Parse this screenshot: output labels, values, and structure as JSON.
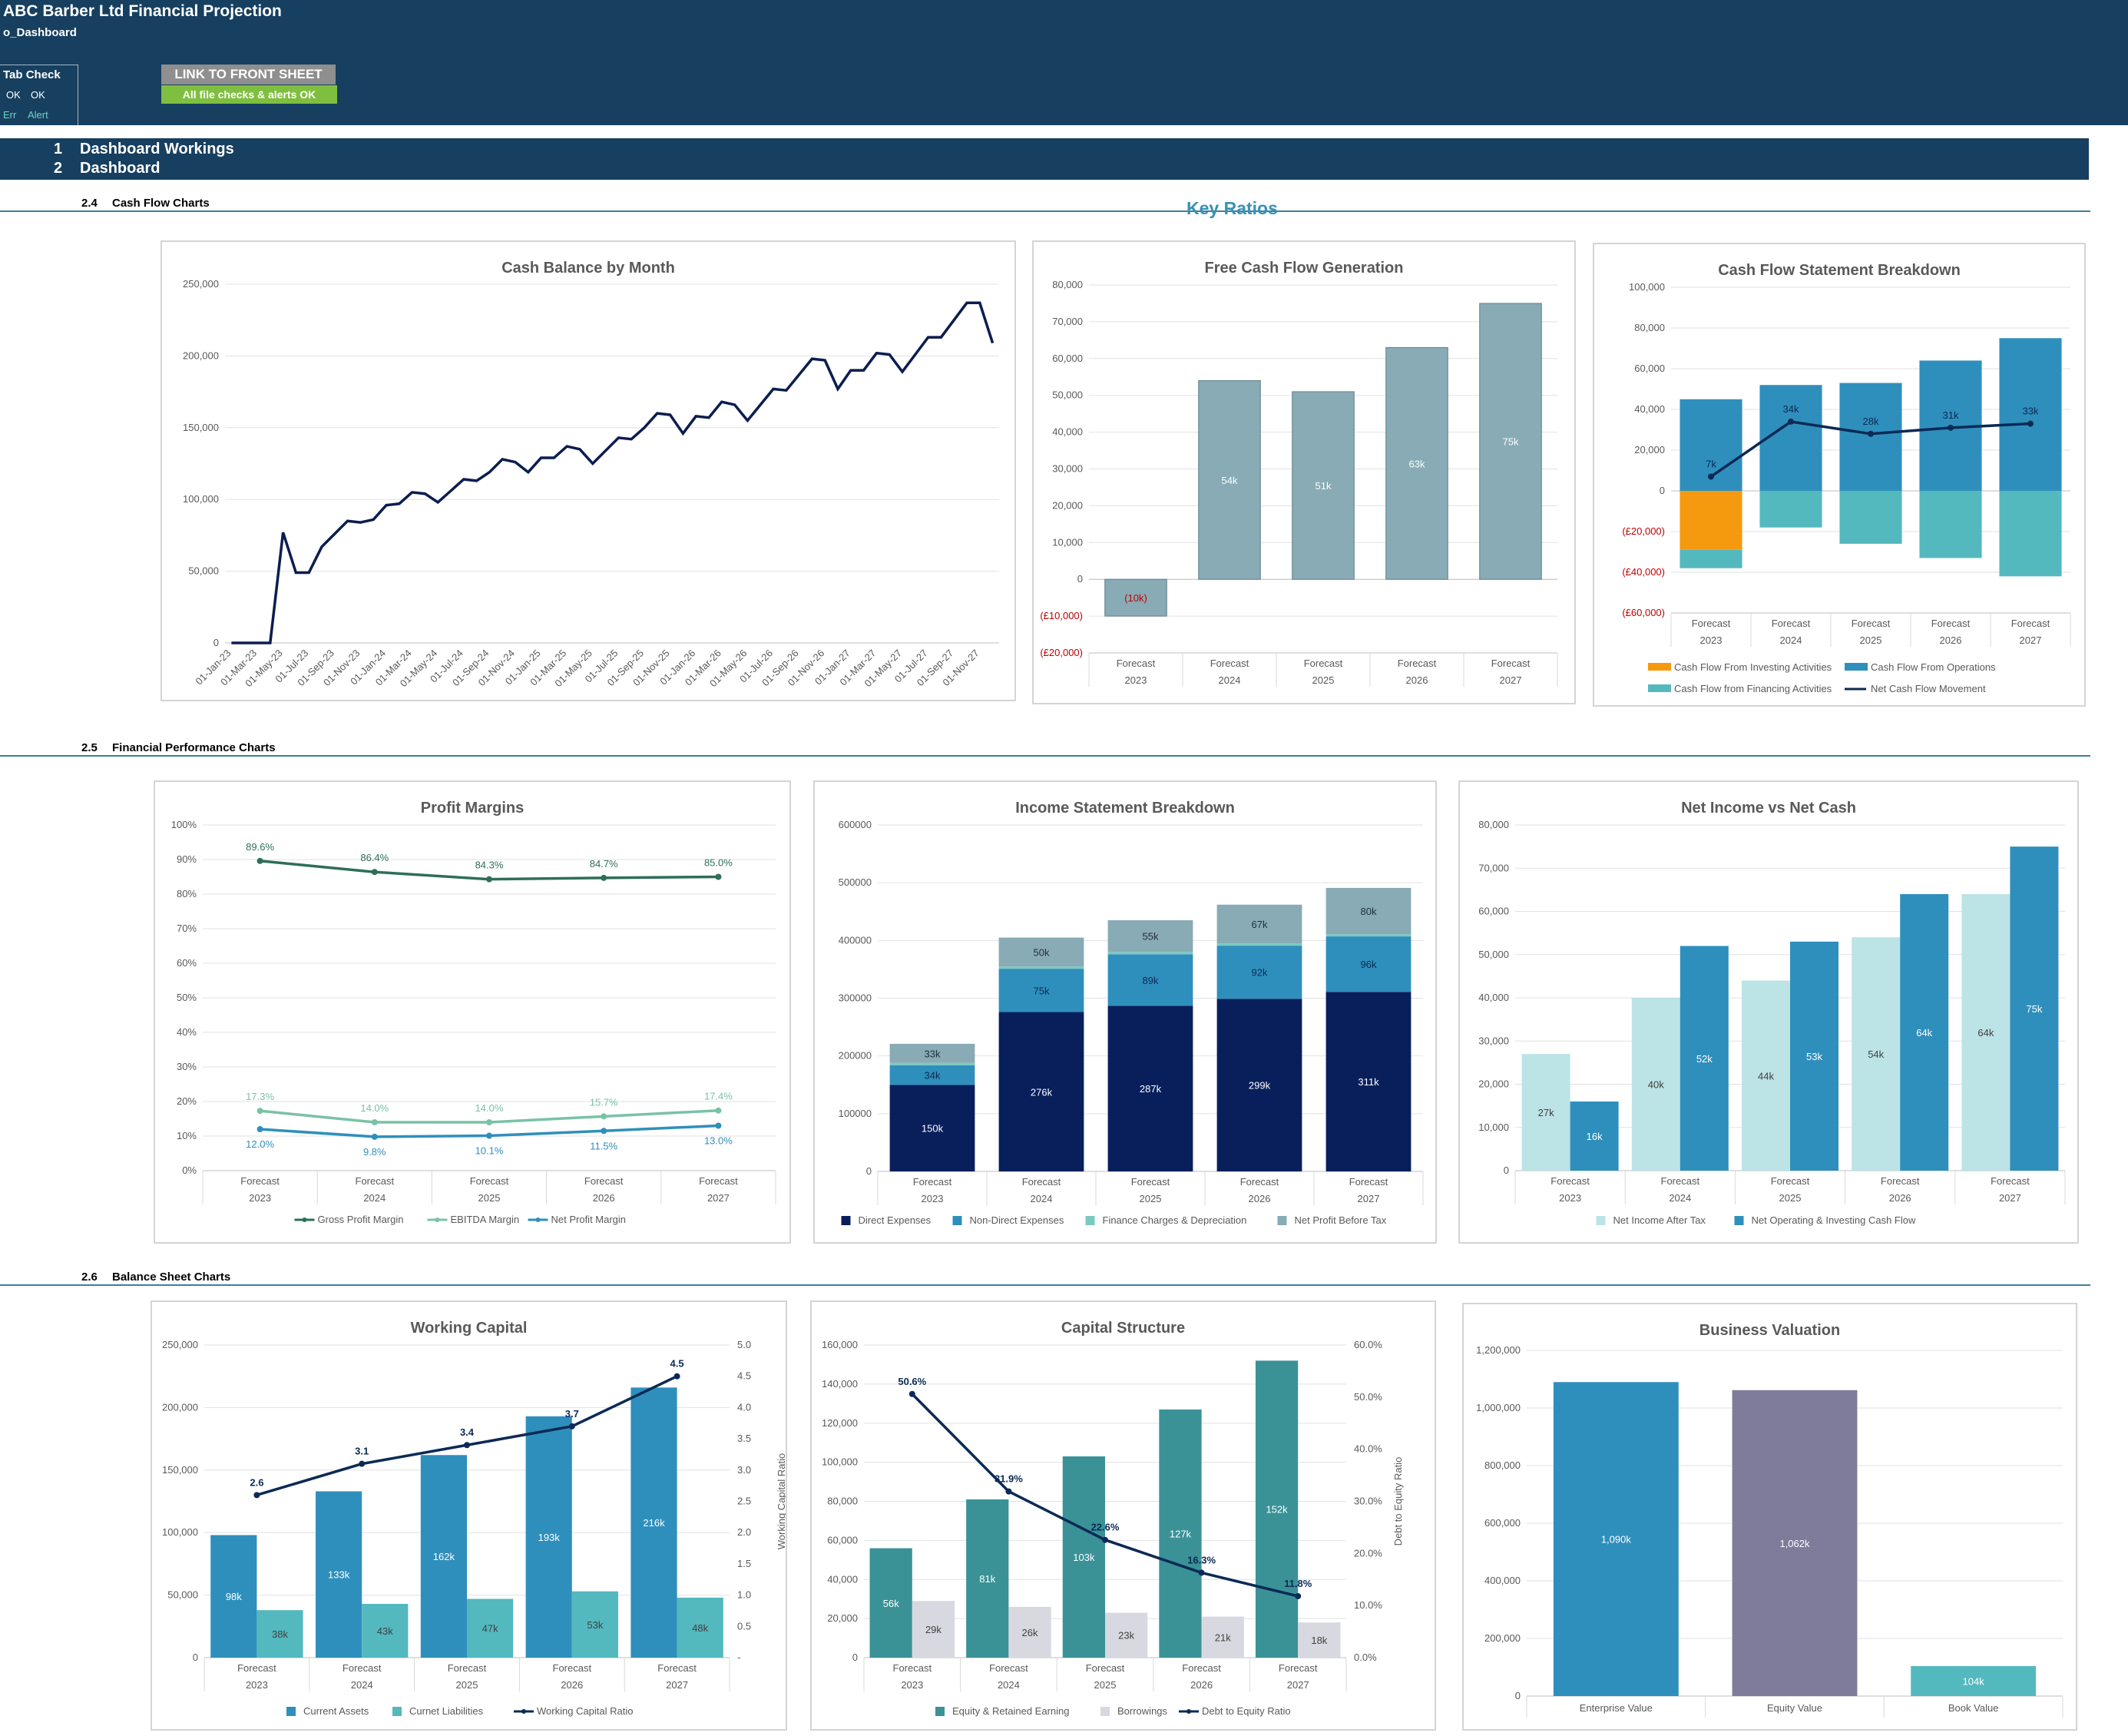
{
  "header": {
    "title": "ABC Barber Ltd Financial Projection",
    "sheet_name": "o_Dashboard",
    "tab_check_label": "Tab Check",
    "ok_1": "OK",
    "ok_2": "OK",
    "err_label": "Err",
    "alert_label": "Alert",
    "link_button_label": "LINK TO FRONT SHEET",
    "checks_status": "All file checks & alerts OK",
    "colors": {
      "header_bg": "#173f5f",
      "status_ok": "#7fbf3f"
    }
  },
  "nav": {
    "items": [
      {
        "number": "1",
        "label": "Dashboard Workings"
      },
      {
        "number": "2",
        "label": "Dashboard"
      }
    ]
  },
  "sections": {
    "cash_flow": {
      "number": "2.4",
      "label": "Cash Flow Charts"
    },
    "performance": {
      "number": "2.5",
      "label": "Financial Performance Charts"
    },
    "balance_sheet": {
      "number": "2.6",
      "label": "Balance Sheet Charts"
    },
    "key_ratios": "Key Ratios"
  },
  "chart_data": [
    {
      "id": "cash_balance",
      "type": "line",
      "title": "Cash Balance by Month",
      "ylim": [
        0,
        250000
      ],
      "yticks": [
        "0",
        "50,000",
        "100,000",
        "150,000",
        "200,000",
        "250,000"
      ],
      "x_labels": [
        "01-Jan-23",
        "01-Mar-23",
        "01-May-23",
        "01-Jul-23",
        "01-Sep-23",
        "01-Nov-23",
        "01-Jan-24",
        "01-Mar-24",
        "01-May-24",
        "01-Jul-24",
        "01-Sep-24",
        "01-Nov-24",
        "01-Jan-25",
        "01-Mar-25",
        "01-May-25",
        "01-Jul-25",
        "01-Sep-25",
        "01-Nov-25",
        "01-Jan-26",
        "01-Mar-26",
        "01-May-26",
        "01-Jul-26",
        "01-Sep-26",
        "01-Nov-26",
        "01-Jan-27",
        "01-Mar-27",
        "01-May-27",
        "01-Jul-27",
        "01-Sep-27",
        "01-Nov-27"
      ],
      "values": [
        0,
        0,
        0,
        0,
        77000,
        49000,
        49000,
        67000,
        76000,
        85000,
        84000,
        86000,
        96000,
        97000,
        105000,
        104000,
        98000,
        106000,
        114000,
        113000,
        119000,
        128000,
        126000,
        119000,
        129000,
        129000,
        137000,
        135000,
        125000,
        134000,
        143000,
        142000,
        150000,
        160000,
        159000,
        146000,
        158000,
        157000,
        168000,
        166000,
        155000,
        166000,
        177000,
        176000,
        187000,
        198000,
        197000,
        177000,
        190000,
        190000,
        202000,
        201000,
        189000,
        201000,
        213000,
        213000,
        225000,
        237000,
        237000,
        209000
      ]
    },
    {
      "id": "fcf",
      "type": "bar",
      "title": "Free Cash Flow Generation",
      "ylim": [
        -20000,
        80000
      ],
      "yticks": [
        "(£20,000)",
        "(£10,000)",
        "0",
        "10,000",
        "20,000",
        "30,000",
        "40,000",
        "50,000",
        "60,000",
        "70,000",
        "80,000"
      ],
      "categories": [
        "2023",
        "2024",
        "2025",
        "2026",
        "2027"
      ],
      "category_prefix": "Forecast",
      "values": [
        -10000,
        54000,
        51000,
        63000,
        75000
      ],
      "data_labels": [
        "(10k)",
        "54k",
        "51k",
        "63k",
        "75k"
      ],
      "color": "#88abb5"
    },
    {
      "id": "cfs_breakdown",
      "type": "bar",
      "title": "Cash Flow Statement Breakdown",
      "ylim": [
        -60000,
        100000
      ],
      "yticks": [
        "(£60,000)",
        "(£40,000)",
        "(£20,000)",
        "0",
        "20,000",
        "40,000",
        "60,000",
        "80,000",
        "100,000"
      ],
      "categories": [
        "2023",
        "2024",
        "2025",
        "2026",
        "2027"
      ],
      "category_prefix": "Forecast",
      "series": [
        {
          "name": "Cash Flow From Investing Activities",
          "color": "#f59a0e",
          "values": [
            -29000,
            0,
            0,
            0,
            0
          ]
        },
        {
          "name": "Cash Flow From Operations",
          "color": "#2f8fbc",
          "values": [
            45000,
            52000,
            53000,
            64000,
            75000
          ]
        },
        {
          "name": "Cash Flow from Financing Activities",
          "color": "#54b8bf",
          "values": [
            -9000,
            -18000,
            -26000,
            -33000,
            -42000
          ]
        },
        {
          "name": "Net Cash Flow Movement",
          "color": "#0b2a55",
          "values": [
            7000,
            34000,
            28000,
            31000,
            33000
          ],
          "labels": [
            "7k",
            "34k",
            "28k",
            "31k",
            "33k"
          ]
        }
      ]
    },
    {
      "id": "profit_margins",
      "type": "line",
      "title": "Profit Margins",
      "ylim": [
        0,
        100
      ],
      "yticks": [
        "0%",
        "10%",
        "20%",
        "30%",
        "40%",
        "50%",
        "60%",
        "70%",
        "80%",
        "90%",
        "100%"
      ],
      "categories": [
        "2023",
        "2024",
        "2025",
        "2026",
        "2027"
      ],
      "category_prefix": "Forecast",
      "series": [
        {
          "name": "Gross Profit Margin",
          "color": "#2e6e5a",
          "values": [
            89.6,
            86.4,
            84.3,
            84.7,
            85.0
          ],
          "labels": [
            "89.6%",
            "86.4%",
            "84.3%",
            "84.7%",
            "85.0%"
          ]
        },
        {
          "name": "EBITDA Margin",
          "color": "#79c2a6",
          "values": [
            17.3,
            14.0,
            14.0,
            15.7,
            17.4
          ],
          "labels": [
            "17.3%",
            "14.0%",
            "14.0%",
            "15.7%",
            "17.4%"
          ]
        },
        {
          "name": "Net Profit Margin",
          "color": "#2f8fbc",
          "values": [
            12.0,
            9.8,
            10.1,
            11.5,
            13.0
          ],
          "labels": [
            "12.0%",
            "9.8%",
            "10.1%",
            "11.5%",
            "13.0%"
          ]
        }
      ]
    },
    {
      "id": "income_breakdown",
      "type": "bar",
      "title": "Income Statement Breakdown",
      "ylim": [
        0,
        600000
      ],
      "yticks": [
        "0",
        "100000",
        "200000",
        "300000",
        "400000",
        "500000",
        "600000"
      ],
      "categories": [
        "2023",
        "2024",
        "2025",
        "2026",
        "2027"
      ],
      "category_prefix": "Forecast",
      "series": [
        {
          "name": "Direct Expenses",
          "color": "#081f5c",
          "values": [
            150000,
            276000,
            287000,
            299000,
            311000
          ],
          "labels": [
            "150k",
            "276k",
            "287k",
            "299k",
            "311k"
          ]
        },
        {
          "name": "Non-Direct Expenses",
          "color": "#2f8fbc",
          "values": [
            34000,
            75000,
            89000,
            92000,
            96000
          ],
          "labels": [
            "34k",
            "75k",
            "89k",
            "92k",
            "96k"
          ]
        },
        {
          "name": "Finance Charges & Depreciation",
          "color": "#7cc9c0",
          "values": [
            4000,
            4000,
            4000,
            4000,
            4000
          ]
        },
        {
          "name": "Net Profit Before Tax",
          "color": "#88abb5",
          "values": [
            33000,
            50000,
            55000,
            67000,
            80000
          ],
          "labels": [
            "33k",
            "50k",
            "55k",
            "67k",
            "80k"
          ]
        }
      ]
    },
    {
      "id": "ni_vs_cash",
      "type": "bar",
      "title": "Net Income vs Net Cash",
      "ylim": [
        0,
        80000
      ],
      "yticks": [
        "0",
        "10,000",
        "20,000",
        "30,000",
        "40,000",
        "50,000",
        "60,000",
        "70,000",
        "80,000"
      ],
      "categories": [
        "2023",
        "2024",
        "2025",
        "2026",
        "2027"
      ],
      "category_prefix": "Forecast",
      "series": [
        {
          "name": "Net Income After Tax",
          "color": "#bce3e6",
          "values": [
            27000,
            40000,
            44000,
            54000,
            64000
          ],
          "labels": [
            "27k",
            "40k",
            "44k",
            "54k",
            "64k"
          ]
        },
        {
          "name": "Net Operating & Investing Cash Flow",
          "color": "#2f8fbc",
          "values": [
            16000,
            52000,
            53000,
            64000,
            75000
          ],
          "labels": [
            "16k",
            "52k",
            "53k",
            "64k",
            "75k"
          ]
        }
      ]
    },
    {
      "id": "working_capital",
      "type": "bar",
      "title": "Working Capital",
      "ylim": [
        0,
        250000
      ],
      "yticks": [
        "0",
        "50,000",
        "100,000",
        "150,000",
        "200,000",
        "250,000"
      ],
      "y2lim": [
        0,
        5
      ],
      "y2ticks": [
        "-",
        "0.5",
        "1.0",
        "1.5",
        "2.0",
        "2.5",
        "3.0",
        "3.5",
        "4.0",
        "4.5",
        "5.0"
      ],
      "y2label": "Working Capital Ratio",
      "categories": [
        "2023",
        "2024",
        "2025",
        "2026",
        "2027"
      ],
      "category_prefix": "Forecast",
      "series": [
        {
          "name": "Current Assets",
          "color": "#2f8fbc",
          "values": [
            98000,
            133000,
            162000,
            193000,
            216000
          ],
          "labels": [
            "98k",
            "133k",
            "162k",
            "193k",
            "216k"
          ]
        },
        {
          "name": "Curnet Liabilities",
          "color": "#54b8bf",
          "values": [
            38000,
            43000,
            47000,
            53000,
            48000
          ],
          "labels": [
            "38k",
            "43k",
            "47k",
            "53k",
            "48k"
          ]
        },
        {
          "name": "Working Capital Ratio",
          "color": "#0b2a55",
          "values": [
            2.6,
            3.1,
            3.4,
            3.7,
            4.5
          ],
          "labels": [
            "2.6",
            "3.1",
            "3.4",
            "3.7",
            "4.5"
          ]
        }
      ]
    },
    {
      "id": "capital_structure",
      "type": "bar",
      "title": "Capital Structure",
      "ylim": [
        0,
        160000
      ],
      "yticks": [
        "0",
        "20,000",
        "40,000",
        "60,000",
        "80,000",
        "100,000",
        "120,000",
        "140,000",
        "160,000"
      ],
      "y2lim": [
        0,
        60
      ],
      "y2ticks": [
        "0.0%",
        "10.0%",
        "20.0%",
        "30.0%",
        "40.0%",
        "50.0%",
        "60.0%"
      ],
      "y2label": "Debt to Equity Ratio",
      "categories": [
        "2023",
        "2024",
        "2025",
        "2026",
        "2027"
      ],
      "category_prefix": "Forecast",
      "series": [
        {
          "name": "Equity & Retained Earning",
          "color": "#3a9297",
          "values": [
            56000,
            81000,
            103000,
            127000,
            152000
          ],
          "labels": [
            "56k",
            "81k",
            "103k",
            "127k",
            "152k"
          ]
        },
        {
          "name": "Borrowings",
          "color": "#d8d8e0",
          "values": [
            29000,
            26000,
            23000,
            21000,
            18000
          ],
          "labels": [
            "29k",
            "26k",
            "23k",
            "21k",
            "18k"
          ]
        },
        {
          "name": "Debt to Equity Ratio",
          "color": "#0b2a55",
          "values": [
            50.6,
            31.9,
            22.6,
            16.3,
            11.8
          ],
          "labels": [
            "50.6%",
            "31.9%",
            "22.6%",
            "16.3%",
            "11.8%"
          ]
        }
      ]
    },
    {
      "id": "valuation",
      "type": "bar",
      "title": "Business Valuation",
      "ylim": [
        0,
        1200000
      ],
      "yticks": [
        "0",
        "200,000",
        "400,000",
        "600,000",
        "800,000",
        "1,000,000",
        "1,200,000"
      ],
      "categories": [
        "Enterprise Value",
        "Equity Value",
        "Book Value"
      ],
      "values": [
        1090000,
        1062000,
        104000
      ],
      "data_labels": [
        "1,090k",
        "1,062k",
        "104k"
      ],
      "colors": [
        "#2f8fbc",
        "#7e7b9b",
        "#54b8bf"
      ]
    }
  ]
}
